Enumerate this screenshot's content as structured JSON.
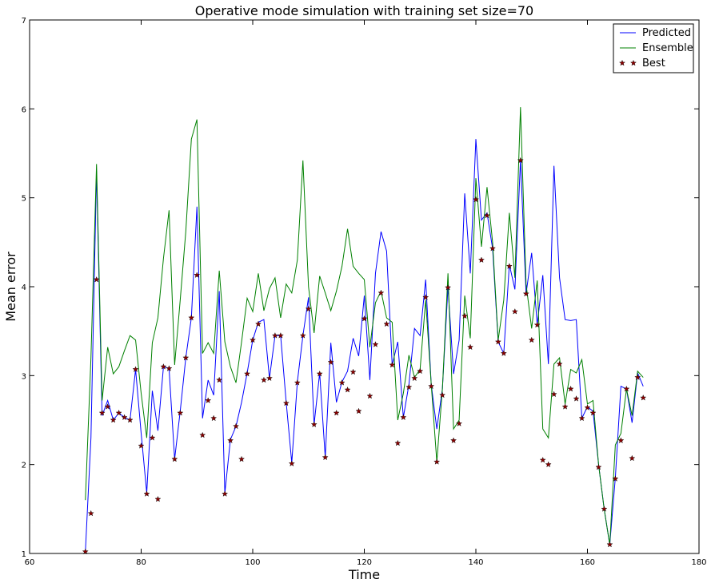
{
  "chart_data": {
    "type": "line",
    "title": "Operative mode simulation with training set size=70",
    "xlabel": "Time",
    "ylabel": "Mean error",
    "xlim": [
      60,
      180
    ],
    "ylim": [
      1,
      7
    ],
    "xticks": [
      60,
      80,
      100,
      120,
      140,
      160,
      180
    ],
    "yticks": [
      1,
      2,
      3,
      4,
      5,
      6,
      7
    ],
    "grid": false,
    "legend_position": "top-right",
    "x": [
      70,
      71,
      72,
      73,
      74,
      75,
      76,
      77,
      78,
      79,
      80,
      81,
      82,
      83,
      84,
      85,
      86,
      87,
      88,
      89,
      90,
      91,
      92,
      93,
      94,
      95,
      96,
      97,
      98,
      99,
      100,
      101,
      102,
      103,
      104,
      105,
      106,
      107,
      108,
      109,
      110,
      111,
      112,
      113,
      114,
      115,
      116,
      117,
      118,
      119,
      120,
      121,
      122,
      123,
      124,
      125,
      126,
      127,
      128,
      129,
      130,
      131,
      132,
      133,
      134,
      135,
      136,
      137,
      138,
      139,
      140,
      141,
      142,
      143,
      144,
      145,
      146,
      147,
      148,
      149,
      150,
      151,
      152,
      153,
      154,
      155,
      156,
      157,
      158,
      159,
      160,
      161,
      162,
      163,
      164,
      165,
      166,
      167,
      168,
      169,
      170
    ],
    "series": [
      {
        "name": "Predicted",
        "kind": "line",
        "color": "#0000ff",
        "values": [
          1.02,
          2.3,
          5.3,
          2.55,
          2.72,
          2.5,
          2.58,
          2.53,
          2.5,
          3.07,
          2.35,
          1.68,
          2.83,
          2.38,
          3.1,
          3.08,
          2.06,
          2.6,
          3.2,
          3.65,
          4.9,
          2.52,
          2.95,
          2.78,
          3.95,
          1.68,
          2.28,
          2.43,
          2.7,
          3.03,
          3.4,
          3.6,
          3.63,
          2.97,
          3.45,
          3.45,
          2.7,
          2.02,
          2.93,
          3.45,
          3.88,
          2.45,
          3.03,
          2.08,
          3.37,
          2.7,
          2.93,
          3.05,
          3.42,
          3.22,
          3.9,
          2.95,
          4.15,
          4.62,
          4.4,
          3.12,
          3.38,
          2.53,
          2.9,
          3.53,
          3.45,
          4.08,
          2.9,
          2.4,
          2.85,
          4.0,
          3.02,
          3.4,
          5.05,
          4.15,
          5.66,
          4.75,
          4.83,
          4.43,
          3.38,
          3.25,
          4.25,
          3.97,
          5.43,
          3.92,
          4.38,
          3.57,
          4.13,
          3.13,
          5.36,
          4.1,
          3.63,
          3.62,
          3.63,
          2.52,
          2.65,
          2.6,
          2.0,
          1.5,
          1.1,
          1.85,
          2.88,
          2.85,
          2.47,
          3.03,
          2.88
        ]
      },
      {
        "name": "Ensemble",
        "kind": "line",
        "color": "#008000",
        "values": [
          1.6,
          3.2,
          5.38,
          2.72,
          3.32,
          3.02,
          3.1,
          3.28,
          3.45,
          3.4,
          2.8,
          2.3,
          3.37,
          3.65,
          4.32,
          4.86,
          3.12,
          3.85,
          4.62,
          5.66,
          5.88,
          3.25,
          3.37,
          3.25,
          4.18,
          3.38,
          3.1,
          2.92,
          3.38,
          3.87,
          3.72,
          4.15,
          3.73,
          3.98,
          4.1,
          3.65,
          4.03,
          3.93,
          4.3,
          5.42,
          4.0,
          3.48,
          4.12,
          3.93,
          3.73,
          3.95,
          4.23,
          4.65,
          4.23,
          4.15,
          4.08,
          3.32,
          3.82,
          3.95,
          3.65,
          3.6,
          2.5,
          2.8,
          3.23,
          2.98,
          3.07,
          3.85,
          2.9,
          2.03,
          2.85,
          4.15,
          2.4,
          2.5,
          3.9,
          3.42,
          5.22,
          4.45,
          5.12,
          4.5,
          3.4,
          3.85,
          4.83,
          4.1,
          6.02,
          4.03,
          3.53,
          4.07,
          2.4,
          2.3,
          3.13,
          3.2,
          2.68,
          3.07,
          3.03,
          3.18,
          2.68,
          2.72,
          2.0,
          1.5,
          1.1,
          2.22,
          2.35,
          2.85,
          2.55,
          3.05,
          2.98
        ]
      },
      {
        "name": "Best",
        "kind": "markers",
        "color": "#8b0000",
        "values": [
          1.02,
          1.45,
          4.08,
          2.58,
          2.65,
          2.5,
          2.58,
          2.53,
          2.5,
          3.07,
          2.21,
          1.67,
          2.3,
          1.61,
          3.1,
          3.08,
          2.06,
          2.58,
          3.2,
          3.65,
          4.13,
          2.33,
          2.72,
          2.52,
          2.95,
          1.67,
          2.27,
          2.43,
          2.06,
          3.02,
          3.4,
          3.58,
          2.95,
          2.97,
          3.45,
          3.45,
          2.69,
          2.01,
          2.92,
          3.45,
          3.75,
          2.45,
          3.02,
          2.08,
          3.15,
          2.58,
          2.92,
          2.84,
          3.04,
          2.6,
          3.64,
          2.77,
          3.35,
          3.93,
          3.58,
          3.12,
          2.24,
          2.53,
          2.87,
          2.97,
          3.05,
          3.88,
          2.88,
          2.03,
          2.78,
          3.99,
          2.27,
          2.46,
          3.67,
          3.32,
          4.98,
          4.3,
          4.8,
          4.43,
          3.38,
          3.25,
          4.23,
          3.72,
          5.42,
          3.92,
          3.4,
          3.57,
          2.05,
          2.0,
          2.79,
          3.13,
          2.65,
          2.85,
          2.74,
          2.52,
          2.64,
          2.58,
          1.97,
          1.5,
          1.1,
          1.84,
          2.27,
          2.85,
          2.07,
          2.98,
          2.75
        ]
      }
    ]
  }
}
